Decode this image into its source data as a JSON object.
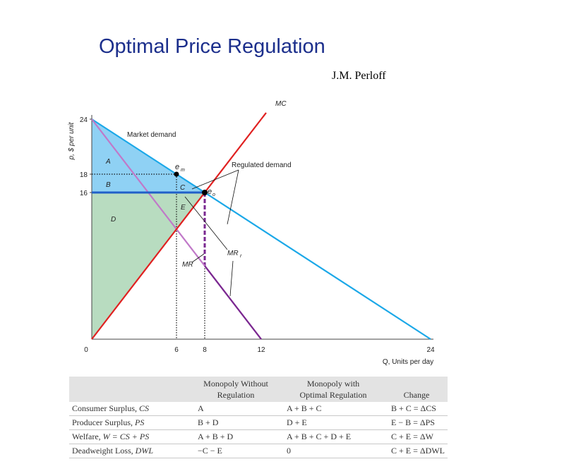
{
  "title": "Optimal Price Regulation",
  "author": "J.M. Perloff",
  "chart_data": {
    "type": "line",
    "ylabel": "p, $ per unit",
    "xlabel": "Q, Units per day",
    "x_ticks": [
      0,
      6,
      8,
      12,
      24
    ],
    "y_ticks": [
      16,
      18,
      24
    ],
    "xlim": [
      0,
      24
    ],
    "ylim": [
      0,
      24
    ],
    "series": [
      {
        "name": "Market demand",
        "color": "#1ba8e8",
        "points": [
          [
            0,
            24
          ],
          [
            24,
            0
          ]
        ]
      },
      {
        "name": "MR",
        "color": "#c078c8",
        "points": [
          [
            0,
            24
          ],
          [
            12,
            0
          ]
        ]
      },
      {
        "name": "MC",
        "color": "#e02020",
        "points": [
          [
            0,
            0
          ],
          [
            12,
            24
          ]
        ]
      },
      {
        "name": "Regulated demand",
        "color": "#2060c8",
        "points": [
          [
            0,
            16
          ],
          [
            8,
            16
          ]
        ]
      },
      {
        "name": "MRr",
        "color": "#7a2890",
        "points": [
          [
            8,
            8
          ],
          [
            12,
            0
          ]
        ]
      }
    ],
    "points": [
      {
        "name": "em",
        "x": 6,
        "y": 18
      },
      {
        "name": "eo",
        "x": 8,
        "y": 16
      }
    ],
    "areas": [
      "A",
      "B",
      "C",
      "D",
      "E"
    ]
  },
  "labels": {
    "market_demand": "Market demand",
    "regulated_demand": "Regulated demand",
    "mc": "MC",
    "mr": "MR",
    "mrr": "MR",
    "mrr_sub": "r",
    "em": "e",
    "em_sub": "m",
    "eo": "e",
    "eo_sub": "o",
    "A": "A",
    "B": "B",
    "C": "C",
    "D": "D",
    "E": "E"
  },
  "table": {
    "headers": [
      "",
      "Monopoly Without Regulation",
      "Monopoly with Optimal Regulation",
      "Change"
    ],
    "header_lines": [
      [
        "Monopoly Without",
        "Regulation"
      ],
      [
        "Monopoly with",
        "Optimal Regulation"
      ],
      [
        "Change"
      ]
    ],
    "rows": [
      {
        "label": "Consumer Surplus, ",
        "label_var": "CS",
        "c1": "A",
        "c2": "A + B + C",
        "c3": "B + C = ΔCS"
      },
      {
        "label": "Producer Surplus, ",
        "label_var": "PS",
        "c1": "B + D",
        "c2": "D + E",
        "c3": "E − B = ΔPS"
      },
      {
        "label": "Welfare, ",
        "label_var": "W = CS + PS",
        "c1": "A + B + D",
        "c2": "A + B + C + D + E",
        "c3": "C + E = ΔW"
      },
      {
        "label": "Deadweight Loss, ",
        "label_var": "DWL",
        "c1": "−C − E",
        "c2": "0",
        "c3": "C + E = ΔDWL"
      }
    ]
  }
}
